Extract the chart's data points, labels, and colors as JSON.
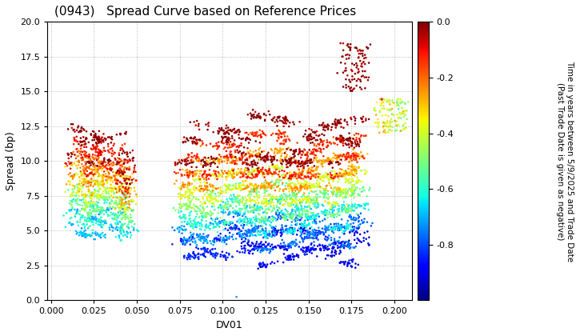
{
  "title": "(0943)   Spread Curve based on Reference Prices",
  "xlabel": "DV01",
  "ylabel": "Spread (bp)",
  "xlim": [
    -0.002,
    0.21
  ],
  "ylim": [
    0.0,
    20.0
  ],
  "xticks": [
    0.0,
    0.025,
    0.05,
    0.075,
    0.1,
    0.125,
    0.15,
    0.175,
    0.2
  ],
  "yticks": [
    0.0,
    2.5,
    5.0,
    7.5,
    10.0,
    12.5,
    15.0,
    17.5,
    20.0
  ],
  "colorbar_label_line1": "Time in years between 5/9/2025 and Trade Date",
  "colorbar_label_line2": "(Past Trade Date is given as negative)",
  "colorbar_ticks": [
    0.0,
    -0.2,
    -0.4,
    -0.6,
    -0.8
  ],
  "cmin": -1.0,
  "cmax": 0.0,
  "background_color": "#ffffff",
  "grid_color": "#aaaaaa",
  "marker_size": 3.5
}
